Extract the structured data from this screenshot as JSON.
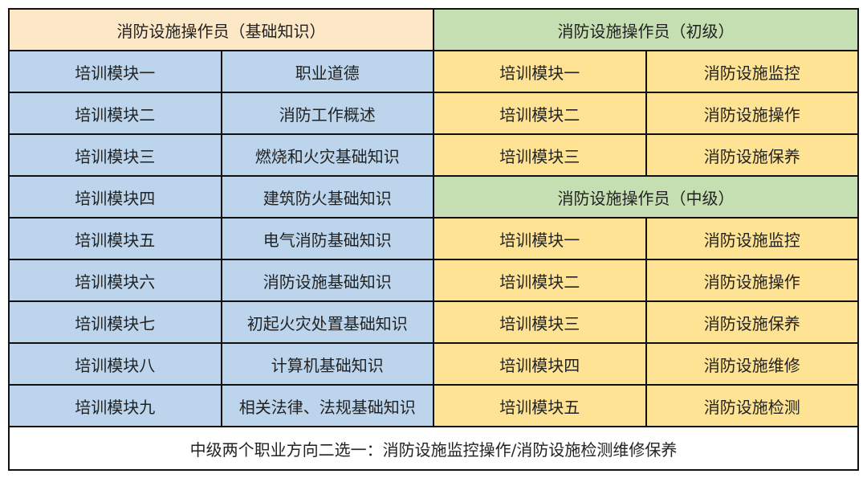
{
  "headers": {
    "basic": "消防设施操作员（基础知识）",
    "junior": "消防设施操作员（初级）",
    "intermediate": "消防设施操作员（中级）"
  },
  "basic_rows": [
    {
      "module": "培训模块一",
      "topic": "职业道德"
    },
    {
      "module": "培训模块二",
      "topic": "消防工作概述"
    },
    {
      "module": "培训模块三",
      "topic": "燃烧和火灾基础知识"
    },
    {
      "module": "培训模块四",
      "topic": "建筑防火基础知识"
    },
    {
      "module": "培训模块五",
      "topic": "电气消防基础知识"
    },
    {
      "module": "培训模块六",
      "topic": "消防设施基础知识"
    },
    {
      "module": "培训模块七",
      "topic": "初起火灾处置基础知识"
    },
    {
      "module": "培训模块八",
      "topic": "计算机基础知识"
    },
    {
      "module": "培训模块九",
      "topic": "相关法律、法规基础知识"
    }
  ],
  "junior_rows": [
    {
      "module": "培训模块一",
      "topic": "消防设施监控"
    },
    {
      "module": "培训模块二",
      "topic": "消防设施操作"
    },
    {
      "module": "培训模块三",
      "topic": "消防设施保养"
    }
  ],
  "intermediate_rows": [
    {
      "module": "培训模块一",
      "topic": "消防设施监控"
    },
    {
      "module": "培训模块二",
      "topic": "消防设施操作"
    },
    {
      "module": "培训模块三",
      "topic": "消防设施保养"
    },
    {
      "module": "培训模块四",
      "topic": "消防设施维修"
    },
    {
      "module": "培训模块五",
      "topic": "消防设施检测"
    }
  ],
  "footer": "中级两个职业方向二选一：消防设施监控操作/消防设施检测维修保养",
  "colors": {
    "basic_header": "#FCE8C6",
    "level_header": "#C5DFB3",
    "basic_cells": "#BCD5EC",
    "level_cells": "#FEE394"
  }
}
